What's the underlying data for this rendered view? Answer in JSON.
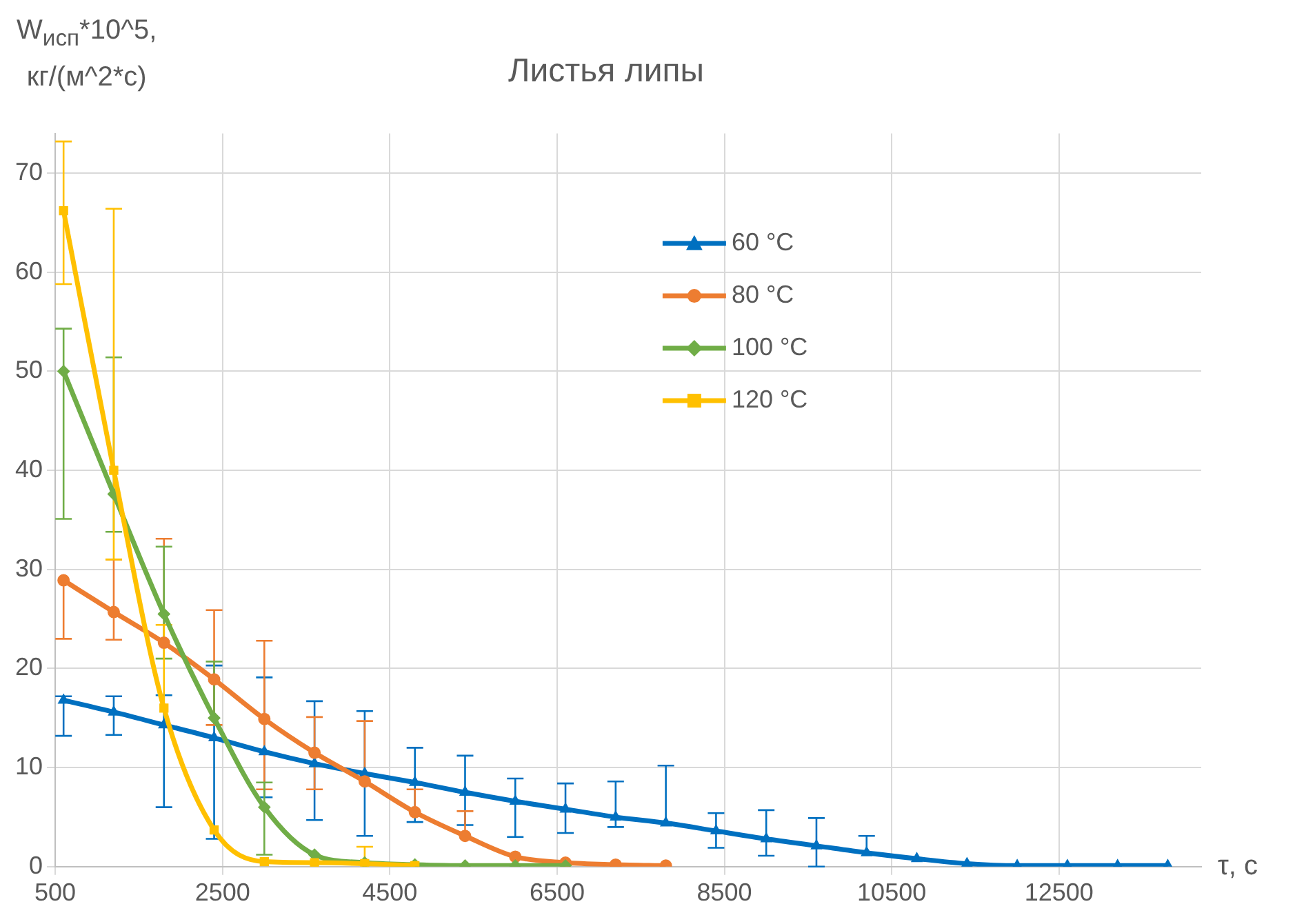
{
  "chart_data": {
    "type": "line",
    "title": "Листья липы",
    "ylabel": "W$_{исп}$*10^5,\nкг/(м^2*с)",
    "xlabel": "τ, с",
    "xlim": [
      500,
      14200
    ],
    "xticks": [
      500,
      2500,
      4500,
      6500,
      8500,
      10500,
      12500
    ],
    "ylim": [
      0,
      74
    ],
    "yticks": [
      0,
      10,
      20,
      30,
      40,
      50,
      60,
      70
    ],
    "grid": true,
    "legend": "right",
    "series": [
      {
        "name": "60 °C",
        "color": "#0070c0",
        "marker": "triangle",
        "x": [
          600,
          1200,
          1800,
          2400,
          3000,
          3600,
          4200,
          4800,
          5400,
          6000,
          6600,
          7200,
          7800,
          8400,
          9000,
          9600,
          10200,
          10800,
          11400,
          12000,
          12600,
          13200,
          13800
        ],
        "values": [
          16.8,
          15.6,
          14.3,
          13.0,
          11.6,
          10.4,
          9.4,
          8.5,
          7.5,
          6.6,
          5.8,
          5.0,
          4.4,
          3.6,
          2.8,
          2.1,
          1.4,
          0.8,
          0.3,
          0.1,
          0.1,
          0.1,
          0.1
        ],
        "errors": [
          [
            13.2,
            17.2
          ],
          [
            13.3,
            17.2
          ],
          [
            6.0,
            17.3
          ],
          [
            2.8,
            20.3
          ],
          [
            7.0,
            19.1
          ],
          [
            4.7,
            16.7
          ],
          [
            3.1,
            15.7
          ],
          [
            4.5,
            12.0
          ],
          [
            4.2,
            11.2
          ],
          [
            3.0,
            8.9
          ],
          [
            3.4,
            8.4
          ],
          [
            4.0,
            8.6
          ],
          [
            4.4,
            10.2
          ],
          [
            1.9,
            5.4
          ],
          [
            1.1,
            5.7
          ],
          [
            0,
            4.9
          ],
          [
            1.4,
            3.1
          ],
          null,
          null,
          null,
          null,
          null,
          null
        ]
      },
      {
        "name": "80 °C",
        "color": "#ed7d31",
        "marker": "circle",
        "x": [
          600,
          1200,
          1800,
          2400,
          3000,
          3600,
          4200,
          4800,
          5400,
          6000,
          6600,
          7200,
          7800
        ],
        "values": [
          28.9,
          25.7,
          22.6,
          18.9,
          14.9,
          11.5,
          8.6,
          5.5,
          3.1,
          1.0,
          0.4,
          0.2,
          0.1
        ],
        "errors": [
          [
            23.0,
            28.9
          ],
          [
            22.9,
            31.0
          ],
          [
            22.6,
            33.1
          ],
          [
            14.3,
            25.9
          ],
          [
            7.8,
            22.8
          ],
          [
            7.8,
            15.1
          ],
          [
            8.6,
            14.7
          ],
          [
            5.5,
            7.8
          ],
          [
            3.1,
            5.6
          ],
          null,
          null,
          null,
          null
        ]
      },
      {
        "name": "100 °C",
        "color": "#70ad47",
        "marker": "diamond",
        "x": [
          600,
          1200,
          1800,
          2400,
          3000,
          3600,
          4200,
          4800,
          5400,
          6000,
          6600
        ],
        "values": [
          50.0,
          37.6,
          25.5,
          15.0,
          6.0,
          1.2,
          0.4,
          0.2,
          0.1,
          0.1,
          0.1
        ],
        "errors": [
          [
            35.1,
            54.3
          ],
          [
            33.8,
            51.4
          ],
          [
            21.0,
            32.3
          ],
          [
            15.0,
            20.7
          ],
          [
            1.2,
            8.5
          ],
          null,
          null,
          null,
          null,
          null,
          null
        ]
      },
      {
        "name": "120 °C",
        "color": "#ffc000",
        "marker": "square",
        "x": [
          600,
          1200,
          1800,
          2400,
          3000,
          3600,
          4200,
          4800
        ],
        "values": [
          66.2,
          40.0,
          16.0,
          3.7,
          0.5,
          0.4,
          0.3,
          0.1
        ],
        "errors": [
          [
            58.8,
            73.2
          ],
          [
            31.0,
            66.4
          ],
          [
            16.0,
            24.4
          ],
          null,
          null,
          null,
          [
            0.3,
            2.0
          ],
          null
        ]
      }
    ]
  }
}
